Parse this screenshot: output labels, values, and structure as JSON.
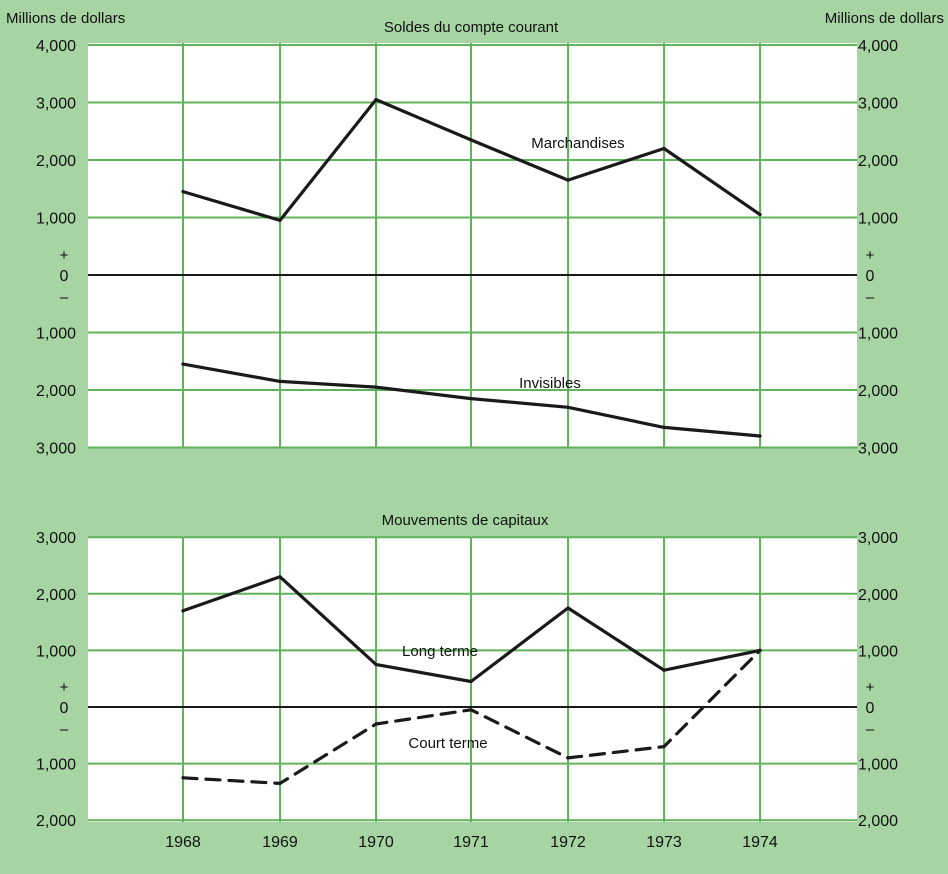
{
  "chart_data": [
    {
      "type": "line",
      "title": "Soldes du compte courant",
      "ylabel_left": "Millions de dollars",
      "ylabel_right": "Millions de dollars",
      "x": [
        "1968",
        "1969",
        "1970",
        "1971",
        "1972",
        "1973",
        "1974"
      ],
      "ylim": [
        -3000,
        4000
      ],
      "y_ticks": [
        {
          "value": 4000,
          "label": "4,000"
        },
        {
          "value": 3000,
          "label": "3,000"
        },
        {
          "value": 2000,
          "label": "2,000"
        },
        {
          "value": 1000,
          "label": "1,000"
        },
        {
          "value": 0,
          "label": "0"
        },
        {
          "value": -1000,
          "label": "1,000"
        },
        {
          "value": -2000,
          "label": "2,000"
        },
        {
          "value": -3000,
          "label": "3,000"
        }
      ],
      "plus_sign": "+",
      "minus_sign": "–",
      "grid": true,
      "series": [
        {
          "name": "Marchandises",
          "style": "solid",
          "values": [
            1450,
            950,
            3050,
            2350,
            1650,
            2200,
            1050
          ]
        },
        {
          "name": "Invisibles",
          "style": "solid",
          "values": [
            -1550,
            -1850,
            -1950,
            -2150,
            -2300,
            -2650,
            -2800
          ]
        }
      ]
    },
    {
      "type": "line",
      "title": "Mouvements de capitaux",
      "x": [
        "1968",
        "1969",
        "1970",
        "1971",
        "1972",
        "1973",
        "1974"
      ],
      "xlabels": [
        "1968",
        "1969",
        "1970",
        "1971",
        "1972",
        "1973",
        "1974"
      ],
      "ylim": [
        -2000,
        3000
      ],
      "y_ticks": [
        {
          "value": 3000,
          "label": "3,000"
        },
        {
          "value": 2000,
          "label": "2,000"
        },
        {
          "value": 1000,
          "label": "1,000"
        },
        {
          "value": 0,
          "label": "0"
        },
        {
          "value": -1000,
          "label": "1,000"
        },
        {
          "value": -2000,
          "label": "2,000"
        }
      ],
      "plus_sign": "+",
      "minus_sign": "–",
      "grid": true,
      "series": [
        {
          "name": "Long terme",
          "style": "solid",
          "values": [
            1700,
            2300,
            750,
            450,
            1750,
            650,
            1000
          ]
        },
        {
          "name": "Court terme",
          "style": "dashed",
          "values": [
            -1250,
            -1350,
            -300,
            -50,
            -900,
            -700,
            1000
          ]
        }
      ]
    }
  ],
  "colors": {
    "background": "#a6d4a2",
    "plot_area": "#ffffff",
    "grid": "#5fb35a",
    "line": "#1a1a1a"
  }
}
